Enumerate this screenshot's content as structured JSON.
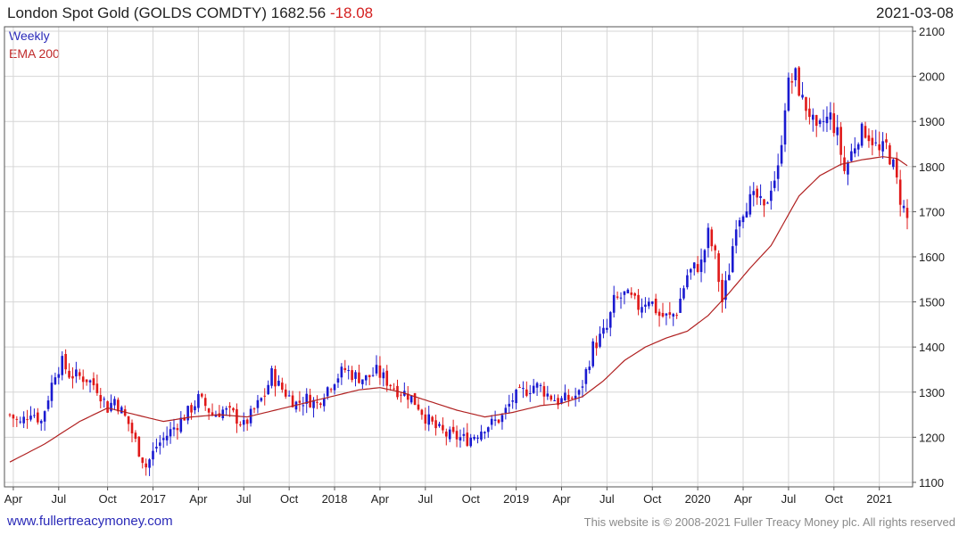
{
  "header": {
    "title": "London Spot Gold (GOLDS COMDTY)",
    "price": "1682.56",
    "change": "-18.08",
    "date": "2021-03-08"
  },
  "legend": {
    "weekly": "Weekly",
    "ema": "EMA 200"
  },
  "footer": {
    "url": "www.fullertreacymoney.com",
    "copyright": "This website is © 2008-2021 Fuller Treacy Money plc. All rights reserved"
  },
  "colors": {
    "up": "#1a1ad0",
    "down": "#e01818",
    "ema": "#b02020",
    "grid": "#d6d6d6",
    "axis": "#555555"
  },
  "chart_data": {
    "type": "candlestick",
    "interval": "weekly",
    "ylim": [
      1090,
      2110
    ],
    "y_ticks": [
      1100,
      1200,
      1300,
      1400,
      1500,
      1600,
      1700,
      1800,
      1900,
      2000,
      2100
    ],
    "x_ticks": [
      "Apr",
      "Jul",
      "Oct",
      "2017",
      "Apr",
      "Jul",
      "Oct",
      "2018",
      "Apr",
      "Jul",
      "Oct",
      "2019",
      "Apr",
      "Jul",
      "Oct",
      "2020",
      "Apr",
      "Jul",
      "Oct",
      "2021"
    ],
    "x_tick_weeks": [
      1,
      14,
      28,
      41,
      54,
      67,
      80,
      93,
      106,
      119,
      132,
      145,
      158,
      171,
      184,
      197,
      210,
      223,
      236,
      249
    ],
    "weeks": 258,
    "close_keypoints": [
      [
        0,
        1250
      ],
      [
        3,
        1230
      ],
      [
        6,
        1260
      ],
      [
        9,
        1235
      ],
      [
        13,
        1345
      ],
      [
        15,
        1365
      ],
      [
        17,
        1340
      ],
      [
        22,
        1330
      ],
      [
        25,
        1310
      ],
      [
        28,
        1265
      ],
      [
        30,
        1285
      ],
      [
        34,
        1230
      ],
      [
        37,
        1170
      ],
      [
        39,
        1135
      ],
      [
        42,
        1180
      ],
      [
        45,
        1205
      ],
      [
        48,
        1230
      ],
      [
        51,
        1255
      ],
      [
        54,
        1285
      ],
      [
        56,
        1270
      ],
      [
        58,
        1250
      ],
      [
        61,
        1260
      ],
      [
        64,
        1250
      ],
      [
        67,
        1225
      ],
      [
        70,
        1260
      ],
      [
        73,
        1295
      ],
      [
        75,
        1340
      ],
      [
        77,
        1315
      ],
      [
        80,
        1290
      ],
      [
        82,
        1275
      ],
      [
        85,
        1285
      ],
      [
        88,
        1275
      ],
      [
        90,
        1300
      ],
      [
        93,
        1330
      ],
      [
        96,
        1350
      ],
      [
        99,
        1335
      ],
      [
        102,
        1330
      ],
      [
        105,
        1345
      ],
      [
        108,
        1325
      ],
      [
        111,
        1305
      ],
      [
        114,
        1295
      ],
      [
        117,
        1270
      ],
      [
        119,
        1245
      ],
      [
        122,
        1220
      ],
      [
        125,
        1205
      ],
      [
        128,
        1200
      ],
      [
        131,
        1195
      ],
      [
        134,
        1210
      ],
      [
        136,
        1225
      ],
      [
        138,
        1230
      ],
      [
        141,
        1245
      ],
      [
        144,
        1285
      ],
      [
        147,
        1300
      ],
      [
        150,
        1315
      ],
      [
        152,
        1310
      ],
      [
        154,
        1295
      ],
      [
        157,
        1280
      ],
      [
        160,
        1285
      ],
      [
        163,
        1295
      ],
      [
        165,
        1345
      ],
      [
        167,
        1400
      ],
      [
        169,
        1420
      ],
      [
        171,
        1440
      ],
      [
        173,
        1500
      ],
      [
        176,
        1515
      ],
      [
        178,
        1505
      ],
      [
        180,
        1490
      ],
      [
        183,
        1510
      ],
      [
        186,
        1470
      ],
      [
        189,
        1465
      ],
      [
        191,
        1480
      ],
      [
        194,
        1560
      ],
      [
        196,
        1575
      ],
      [
        198,
        1585
      ],
      [
        200,
        1650
      ],
      [
        202,
        1600
      ],
      [
        204,
        1500
      ],
      [
        206,
        1570
      ],
      [
        208,
        1680
      ],
      [
        211,
        1720
      ],
      [
        214,
        1730
      ],
      [
        216,
        1700
      ],
      [
        218,
        1760
      ],
      [
        220,
        1790
      ],
      [
        222,
        1940
      ],
      [
        223,
        1980
      ],
      [
        225,
        2000
      ],
      [
        227,
        1945
      ],
      [
        229,
        1920
      ],
      [
        231,
        1870
      ],
      [
        233,
        1900
      ],
      [
        235,
        1910
      ],
      [
        237,
        1870
      ],
      [
        239,
        1790
      ],
      [
        241,
        1830
      ],
      [
        243,
        1870
      ],
      [
        245,
        1880
      ],
      [
        247,
        1860
      ],
      [
        249,
        1830
      ],
      [
        251,
        1845
      ],
      [
        253,
        1800
      ],
      [
        255,
        1730
      ],
      [
        257,
        1683
      ]
    ],
    "ema_keypoints": [
      [
        0,
        1145
      ],
      [
        10,
        1185
      ],
      [
        20,
        1235
      ],
      [
        28,
        1265
      ],
      [
        36,
        1250
      ],
      [
        44,
        1235
      ],
      [
        52,
        1245
      ],
      [
        60,
        1250
      ],
      [
        68,
        1245
      ],
      [
        76,
        1260
      ],
      [
        84,
        1275
      ],
      [
        92,
        1290
      ],
      [
        100,
        1305
      ],
      [
        106,
        1310
      ],
      [
        112,
        1300
      ],
      [
        120,
        1280
      ],
      [
        128,
        1260
      ],
      [
        136,
        1245
      ],
      [
        144,
        1255
      ],
      [
        152,
        1270
      ],
      [
        158,
        1275
      ],
      [
        164,
        1290
      ],
      [
        170,
        1325
      ],
      [
        176,
        1370
      ],
      [
        182,
        1400
      ],
      [
        188,
        1420
      ],
      [
        194,
        1435
      ],
      [
        200,
        1470
      ],
      [
        206,
        1520
      ],
      [
        212,
        1575
      ],
      [
        218,
        1625
      ],
      [
        222,
        1680
      ],
      [
        226,
        1735
      ],
      [
        232,
        1780
      ],
      [
        238,
        1805
      ],
      [
        244,
        1815
      ],
      [
        250,
        1822
      ],
      [
        254,
        1818
      ],
      [
        257,
        1802
      ]
    ]
  }
}
